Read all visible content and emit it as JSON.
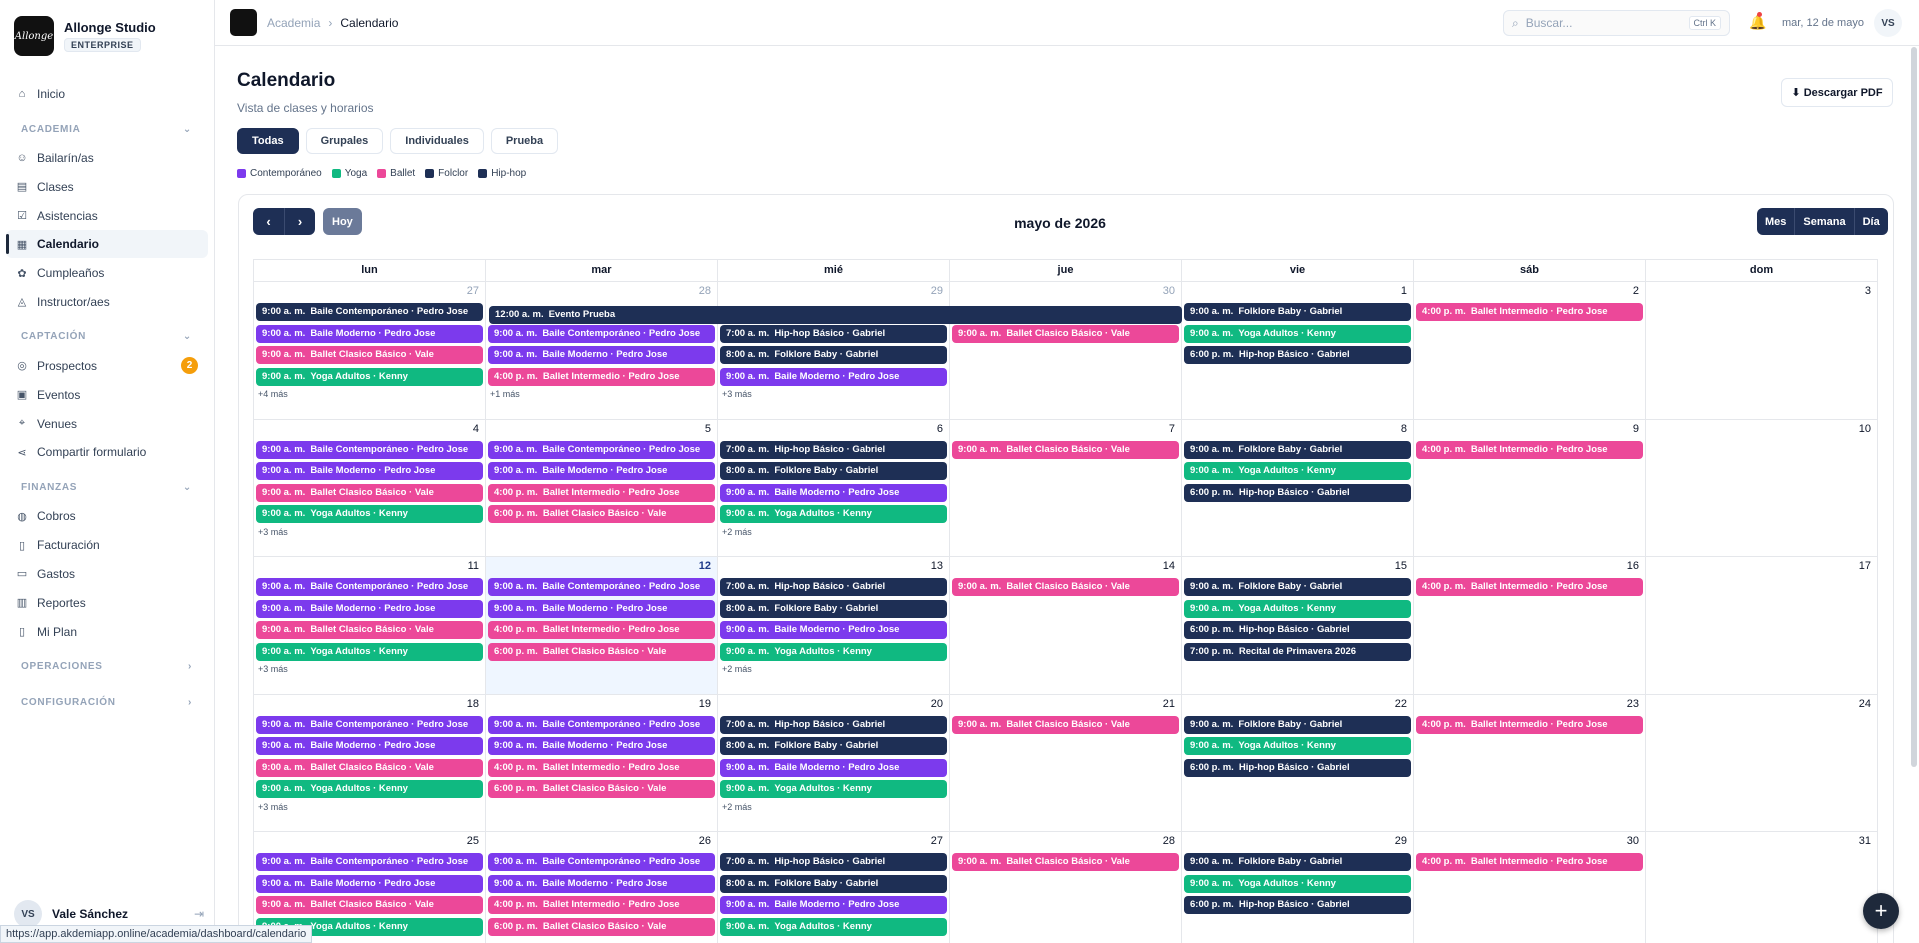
{
  "brand": {
    "name": "Allonge Studio",
    "plan": "ENTERPRISE",
    "logo_text": "Allonge"
  },
  "nav": {
    "items": [
      {
        "label": "Inicio",
        "icon": "home-icon"
      }
    ],
    "sections": [
      {
        "title": "ACADEMIA",
        "chevron": "⌄",
        "items": [
          {
            "label": "Bailarín/as",
            "icon": "users-icon"
          },
          {
            "label": "Clases",
            "icon": "book-icon"
          },
          {
            "label": "Asistencias",
            "icon": "clipboard-check-icon"
          },
          {
            "label": "Calendario",
            "icon": "calendar-icon",
            "active": true
          },
          {
            "label": "Cumpleaños",
            "icon": "cake-icon"
          },
          {
            "label": "Instructor/aes",
            "icon": "graduation-cap-icon"
          }
        ]
      },
      {
        "title": "CAPTACIÓN",
        "chevron": "⌄",
        "items": [
          {
            "label": "Prospectos",
            "icon": "target-icon",
            "badge": "2"
          },
          {
            "label": "Eventos",
            "icon": "calendar-event-icon"
          },
          {
            "label": "Venues",
            "icon": "map-pin-icon"
          },
          {
            "label": "Compartir formulario",
            "icon": "share-icon"
          }
        ]
      },
      {
        "title": "FINANZAS",
        "chevron": "⌄",
        "items": [
          {
            "label": "Cobros",
            "icon": "coins-icon"
          },
          {
            "label": "Facturación",
            "icon": "file-text-icon"
          },
          {
            "label": "Gastos",
            "icon": "receipt-icon"
          },
          {
            "label": "Reportes",
            "icon": "bar-chart-icon"
          },
          {
            "label": "Mi Plan",
            "icon": "document-icon"
          }
        ]
      },
      {
        "title": "OPERACIONES",
        "chevron": "›",
        "items": []
      },
      {
        "title": "CONFIGURACIÓN",
        "chevron": "›",
        "items": []
      }
    ]
  },
  "user": {
    "initials": "VS",
    "name": "Vale Sánchez"
  },
  "status_url": "https://app.akdemiapp.online/academia/dashboard/calendario",
  "topbar": {
    "crumbs": [
      "Academia",
      "Calendario"
    ],
    "search_placeholder": "Buscar...",
    "search_kbd": "Ctrl K",
    "date": "mar, 12 de mayo",
    "initials": "VS"
  },
  "header": {
    "title": "Calendario",
    "subtitle": "Vista de clases y horarios",
    "pdf_button": "⬇ Descargar PDF"
  },
  "filters": [
    "Todas",
    "Grupales",
    "Individuales",
    "Prueba"
  ],
  "active_filter": 0,
  "legend": [
    {
      "label": "Contemporáneo",
      "color": "#7c3aed"
    },
    {
      "label": "Yoga",
      "color": "#10b981"
    },
    {
      "label": "Ballet",
      "color": "#ec4899"
    },
    {
      "label": "Folclor",
      "color": "#1e2f55"
    },
    {
      "label": "Hip-hop",
      "color": "#1e2f55"
    }
  ],
  "calendar": {
    "title": "mayo de 2026",
    "prev": "‹",
    "next": "›",
    "today_label": "Hoy",
    "views": [
      "Mes",
      "Semana",
      "Día"
    ],
    "weekdays": [
      "lun",
      "mar",
      "mié",
      "jue",
      "vie",
      "sáb",
      "dom"
    ],
    "colors": {
      "contemporaneo": "#7c3aed",
      "yoga": "#10b981",
      "ballet": "#ec4899",
      "navy": "#1e2f55"
    },
    "spanning_event": {
      "time": "12:00 a. m.",
      "title": "Evento Prueba"
    },
    "weeks": [
      [
        {
          "num": "27",
          "other": true,
          "events": [
            {
              "time": "9:00 a. m.",
              "title": "Baile Contemporáneo · Pedro Jose",
              "c": "navy"
            },
            {
              "time": "9:00 a. m.",
              "title": "Baile Moderno · Pedro Jose",
              "c": "contemporaneo"
            },
            {
              "time": "9:00 a. m.",
              "title": "Ballet Clasico Básico · Vale",
              "c": "ballet"
            },
            {
              "time": "9:00 a. m.",
              "title": "Yoga Adultos · Kenny",
              "c": "yoga"
            }
          ],
          "more": "+4 más"
        },
        {
          "num": "28",
          "other": true,
          "offset": 1,
          "events": [
            {
              "time": "9:00 a. m.",
              "title": "Baile Contemporáneo · Pedro Jose",
              "c": "contemporaneo"
            },
            {
              "time": "9:00 a. m.",
              "title": "Baile Moderno · Pedro Jose",
              "c": "contemporaneo"
            },
            {
              "time": "4:00 p. m.",
              "title": "Ballet Intermedio · Pedro Jose",
              "c": "ballet"
            }
          ],
          "more": "+1 más"
        },
        {
          "num": "29",
          "other": true,
          "offset": 1,
          "events": [
            {
              "time": "7:00 a. m.",
              "title": "Hip-hop Básico · Gabriel",
              "c": "navy"
            },
            {
              "time": "8:00 a. m.",
              "title": "Folklore Baby · Gabriel",
              "c": "navy"
            },
            {
              "time": "9:00 a. m.",
              "title": "Baile Moderno · Pedro Jose",
              "c": "contemporaneo"
            }
          ],
          "more": "+3 más"
        },
        {
          "num": "30",
          "other": true,
          "offset": 1,
          "events": [
            {
              "time": "9:00 a. m.",
              "title": "Ballet Clasico Básico · Vale",
              "c": "ballet"
            }
          ],
          "more": ""
        },
        {
          "num": "1",
          "events": [
            {
              "time": "9:00 a. m.",
              "title": "Folklore Baby · Gabriel",
              "c": "navy"
            },
            {
              "time": "9:00 a. m.",
              "title": "Yoga Adultos · Kenny",
              "c": "yoga"
            },
            {
              "time": "6:00 p. m.",
              "title": "Hip-hop Básico · Gabriel",
              "c": "navy"
            }
          ],
          "more": ""
        },
        {
          "num": "2",
          "events": [
            {
              "time": "4:00 p. m.",
              "title": "Ballet Intermedio · Pedro Jose",
              "c": "ballet"
            }
          ],
          "more": ""
        },
        {
          "num": "3",
          "events": [],
          "more": ""
        }
      ],
      [
        {
          "num": "4",
          "events": [
            {
              "time": "9:00 a. m.",
              "title": "Baile Contemporáneo · Pedro Jose",
              "c": "contemporaneo"
            },
            {
              "time": "9:00 a. m.",
              "title": "Baile Moderno · Pedro Jose",
              "c": "contemporaneo"
            },
            {
              "time": "9:00 a. m.",
              "title": "Ballet Clasico Básico · Vale",
              "c": "ballet"
            },
            {
              "time": "9:00 a. m.",
              "title": "Yoga Adultos · Kenny",
              "c": "yoga"
            }
          ],
          "more": "+3 más"
        },
        {
          "num": "5",
          "events": [
            {
              "time": "9:00 a. m.",
              "title": "Baile Contemporáneo · Pedro Jose",
              "c": "contemporaneo"
            },
            {
              "time": "9:00 a. m.",
              "title": "Baile Moderno · Pedro Jose",
              "c": "contemporaneo"
            },
            {
              "time": "4:00 p. m.",
              "title": "Ballet Intermedio · Pedro Jose",
              "c": "ballet"
            },
            {
              "time": "6:00 p. m.",
              "title": "Ballet Clasico Básico · Vale",
              "c": "ballet"
            }
          ],
          "more": ""
        },
        {
          "num": "6",
          "events": [
            {
              "time": "7:00 a. m.",
              "title": "Hip-hop Básico · Gabriel",
              "c": "navy"
            },
            {
              "time": "8:00 a. m.",
              "title": "Folklore Baby · Gabriel",
              "c": "navy"
            },
            {
              "time": "9:00 a. m.",
              "title": "Baile Moderno · Pedro Jose",
              "c": "contemporaneo"
            },
            {
              "time": "9:00 a. m.",
              "title": "Yoga Adultos · Kenny",
              "c": "yoga"
            }
          ],
          "more": "+2 más"
        },
        {
          "num": "7",
          "events": [
            {
              "time": "9:00 a. m.",
              "title": "Ballet Clasico Básico · Vale",
              "c": "ballet"
            }
          ],
          "more": ""
        },
        {
          "num": "8",
          "events": [
            {
              "time": "9:00 a. m.",
              "title": "Folklore Baby · Gabriel",
              "c": "navy"
            },
            {
              "time": "9:00 a. m.",
              "title": "Yoga Adultos · Kenny",
              "c": "yoga"
            },
            {
              "time": "6:00 p. m.",
              "title": "Hip-hop Básico · Gabriel",
              "c": "navy"
            }
          ],
          "more": ""
        },
        {
          "num": "9",
          "events": [
            {
              "time": "4:00 p. m.",
              "title": "Ballet Intermedio · Pedro Jose",
              "c": "ballet"
            }
          ],
          "more": ""
        },
        {
          "num": "10",
          "events": [],
          "more": ""
        }
      ],
      [
        {
          "num": "11",
          "events": [
            {
              "time": "9:00 a. m.",
              "title": "Baile Contemporáneo · Pedro Jose",
              "c": "contemporaneo"
            },
            {
              "time": "9:00 a. m.",
              "title": "Baile Moderno · Pedro Jose",
              "c": "contemporaneo"
            },
            {
              "time": "9:00 a. m.",
              "title": "Ballet Clasico Básico · Vale",
              "c": "ballet"
            },
            {
              "time": "9:00 a. m.",
              "title": "Yoga Adultos · Kenny",
              "c": "yoga"
            }
          ],
          "more": "+3 más"
        },
        {
          "num": "12",
          "today": true,
          "events": [
            {
              "time": "9:00 a. m.",
              "title": "Baile Contemporáneo · Pedro Jose",
              "c": "contemporaneo"
            },
            {
              "time": "9:00 a. m.",
              "title": "Baile Moderno · Pedro Jose",
              "c": "contemporaneo"
            },
            {
              "time": "4:00 p. m.",
              "title": "Ballet Intermedio · Pedro Jose",
              "c": "ballet"
            },
            {
              "time": "6:00 p. m.",
              "title": "Ballet Clasico Básico · Vale",
              "c": "ballet"
            }
          ],
          "more": ""
        },
        {
          "num": "13",
          "events": [
            {
              "time": "7:00 a. m.",
              "title": "Hip-hop Básico · Gabriel",
              "c": "navy"
            },
            {
              "time": "8:00 a. m.",
              "title": "Folklore Baby · Gabriel",
              "c": "navy"
            },
            {
              "time": "9:00 a. m.",
              "title": "Baile Moderno · Pedro Jose",
              "c": "contemporaneo"
            },
            {
              "time": "9:00 a. m.",
              "title": "Yoga Adultos · Kenny",
              "c": "yoga"
            }
          ],
          "more": "+2 más"
        },
        {
          "num": "14",
          "events": [
            {
              "time": "9:00 a. m.",
              "title": "Ballet Clasico Básico · Vale",
              "c": "ballet"
            }
          ],
          "more": ""
        },
        {
          "num": "15",
          "events": [
            {
              "time": "9:00 a. m.",
              "title": "Folklore Baby · Gabriel",
              "c": "navy"
            },
            {
              "time": "9:00 a. m.",
              "title": "Yoga Adultos · Kenny",
              "c": "yoga"
            },
            {
              "time": "6:00 p. m.",
              "title": "Hip-hop Básico · Gabriel",
              "c": "navy"
            },
            {
              "time": "7:00 p. m.",
              "title": "Recital de Primavera 2026",
              "c": "navy"
            }
          ],
          "more": ""
        },
        {
          "num": "16",
          "events": [
            {
              "time": "4:00 p. m.",
              "title": "Ballet Intermedio · Pedro Jose",
              "c": "ballet"
            }
          ],
          "more": ""
        },
        {
          "num": "17",
          "events": [],
          "more": ""
        }
      ],
      [
        {
          "num": "18",
          "events": [
            {
              "time": "9:00 a. m.",
              "title": "Baile Contemporáneo · Pedro Jose",
              "c": "contemporaneo"
            },
            {
              "time": "9:00 a. m.",
              "title": "Baile Moderno · Pedro Jose",
              "c": "contemporaneo"
            },
            {
              "time": "9:00 a. m.",
              "title": "Ballet Clasico Básico · Vale",
              "c": "ballet"
            },
            {
              "time": "9:00 a. m.",
              "title": "Yoga Adultos · Kenny",
              "c": "yoga"
            }
          ],
          "more": "+3 más"
        },
        {
          "num": "19",
          "events": [
            {
              "time": "9:00 a. m.",
              "title": "Baile Contemporáneo · Pedro Jose",
              "c": "contemporaneo"
            },
            {
              "time": "9:00 a. m.",
              "title": "Baile Moderno · Pedro Jose",
              "c": "contemporaneo"
            },
            {
              "time": "4:00 p. m.",
              "title": "Ballet Intermedio · Pedro Jose",
              "c": "ballet"
            },
            {
              "time": "6:00 p. m.",
              "title": "Ballet Clasico Básico · Vale",
              "c": "ballet"
            }
          ],
          "more": ""
        },
        {
          "num": "20",
          "events": [
            {
              "time": "7:00 a. m.",
              "title": "Hip-hop Básico · Gabriel",
              "c": "navy"
            },
            {
              "time": "8:00 a. m.",
              "title": "Folklore Baby · Gabriel",
              "c": "navy"
            },
            {
              "time": "9:00 a. m.",
              "title": "Baile Moderno · Pedro Jose",
              "c": "contemporaneo"
            },
            {
              "time": "9:00 a. m.",
              "title": "Yoga Adultos · Kenny",
              "c": "yoga"
            }
          ],
          "more": "+2 más"
        },
        {
          "num": "21",
          "events": [
            {
              "time": "9:00 a. m.",
              "title": "Ballet Clasico Básico · Vale",
              "c": "ballet"
            }
          ],
          "more": ""
        },
        {
          "num": "22",
          "events": [
            {
              "time": "9:00 a. m.",
              "title": "Folklore Baby · Gabriel",
              "c": "navy"
            },
            {
              "time": "9:00 a. m.",
              "title": "Yoga Adultos · Kenny",
              "c": "yoga"
            },
            {
              "time": "6:00 p. m.",
              "title": "Hip-hop Básico · Gabriel",
              "c": "navy"
            }
          ],
          "more": ""
        },
        {
          "num": "23",
          "events": [
            {
              "time": "4:00 p. m.",
              "title": "Ballet Intermedio · Pedro Jose",
              "c": "ballet"
            }
          ],
          "more": ""
        },
        {
          "num": "24",
          "events": [],
          "more": ""
        }
      ],
      [
        {
          "num": "25",
          "events": [
            {
              "time": "9:00 a. m.",
              "title": "Baile Contemporáneo · Pedro Jose",
              "c": "contemporaneo"
            },
            {
              "time": "9:00 a. m.",
              "title": "Baile Moderno · Pedro Jose",
              "c": "contemporaneo"
            },
            {
              "time": "9:00 a. m.",
              "title": "Ballet Clasico Básico · Vale",
              "c": "ballet"
            },
            {
              "time": "9:00 a. m.",
              "title": "Yoga Adultos · Kenny",
              "c": "yoga"
            }
          ],
          "more": ""
        },
        {
          "num": "26",
          "events": [
            {
              "time": "9:00 a. m.",
              "title": "Baile Contemporáneo · Pedro Jose",
              "c": "contemporaneo"
            },
            {
              "time": "9:00 a. m.",
              "title": "Baile Moderno · Pedro Jose",
              "c": "contemporaneo"
            },
            {
              "time": "4:00 p. m.",
              "title": "Ballet Intermedio · Pedro Jose",
              "c": "ballet"
            },
            {
              "time": "6:00 p. m.",
              "title": "Ballet Clasico Básico · Vale",
              "c": "ballet"
            }
          ],
          "more": ""
        },
        {
          "num": "27",
          "events": [
            {
              "time": "7:00 a. m.",
              "title": "Hip-hop Básico · Gabriel",
              "c": "navy"
            },
            {
              "time": "8:00 a. m.",
              "title": "Folklore Baby · Gabriel",
              "c": "navy"
            },
            {
              "time": "9:00 a. m.",
              "title": "Baile Moderno · Pedro Jose",
              "c": "contemporaneo"
            },
            {
              "time": "9:00 a. m.",
              "title": "Yoga Adultos · Kenny",
              "c": "yoga"
            }
          ],
          "more": ""
        },
        {
          "num": "28",
          "events": [
            {
              "time": "9:00 a. m.",
              "title": "Ballet Clasico Básico · Vale",
              "c": "ballet"
            }
          ],
          "more": ""
        },
        {
          "num": "29",
          "events": [
            {
              "time": "9:00 a. m.",
              "title": "Folklore Baby · Gabriel",
              "c": "navy"
            },
            {
              "time": "9:00 a. m.",
              "title": "Yoga Adultos · Kenny",
              "c": "yoga"
            },
            {
              "time": "6:00 p. m.",
              "title": "Hip-hop Básico · Gabriel",
              "c": "navy"
            }
          ],
          "more": ""
        },
        {
          "num": "30",
          "events": [
            {
              "time": "4:00 p. m.",
              "title": "Ballet Intermedio · Pedro Jose",
              "c": "ballet"
            }
          ],
          "more": ""
        },
        {
          "num": "31",
          "events": [],
          "more": ""
        }
      ]
    ]
  },
  "fab": "+"
}
